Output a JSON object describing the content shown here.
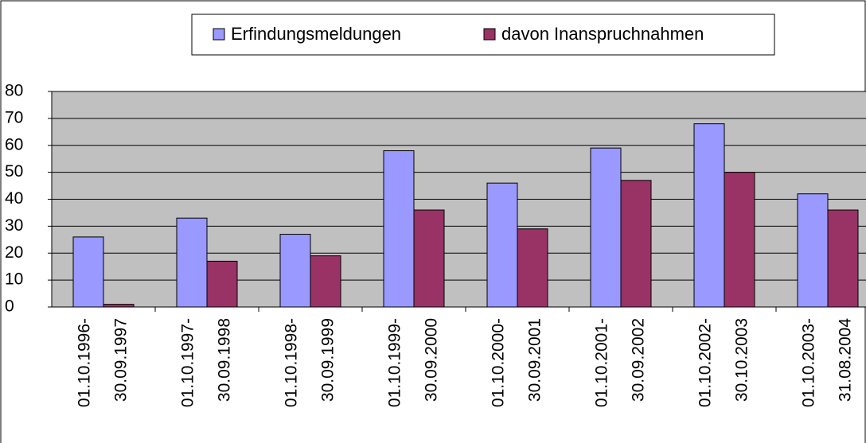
{
  "chart_data": {
    "type": "bar",
    "categories": [
      [
        "01.10.1996-",
        "30.09.1997"
      ],
      [
        "01.10.1997-",
        "30.09.1998"
      ],
      [
        "01.10.1998-",
        "30.09.1999"
      ],
      [
        "01.10.1999-",
        "30.09.2000"
      ],
      [
        "01.10.2000-",
        "30.09.2001"
      ],
      [
        "01.10.2001-",
        "30.09.2002"
      ],
      [
        "01.10.2002-",
        "30.10.2003"
      ],
      [
        "01.10.2003-",
        "31.08.2004"
      ]
    ],
    "series": [
      {
        "name": "Erfindungsmeldungen",
        "color": "#9999ff",
        "values": [
          26,
          33,
          27,
          58,
          46,
          59,
          68,
          42
        ]
      },
      {
        "name": "davon Inanspruchnahmen",
        "color": "#993366",
        "values": [
          1,
          17,
          19,
          36,
          29,
          47,
          50,
          36
        ]
      }
    ],
    "ylim": [
      0,
      80
    ],
    "yticks": [
      0,
      10,
      20,
      30,
      40,
      50,
      60,
      70,
      80
    ],
    "grid": true,
    "legend": "top"
  }
}
